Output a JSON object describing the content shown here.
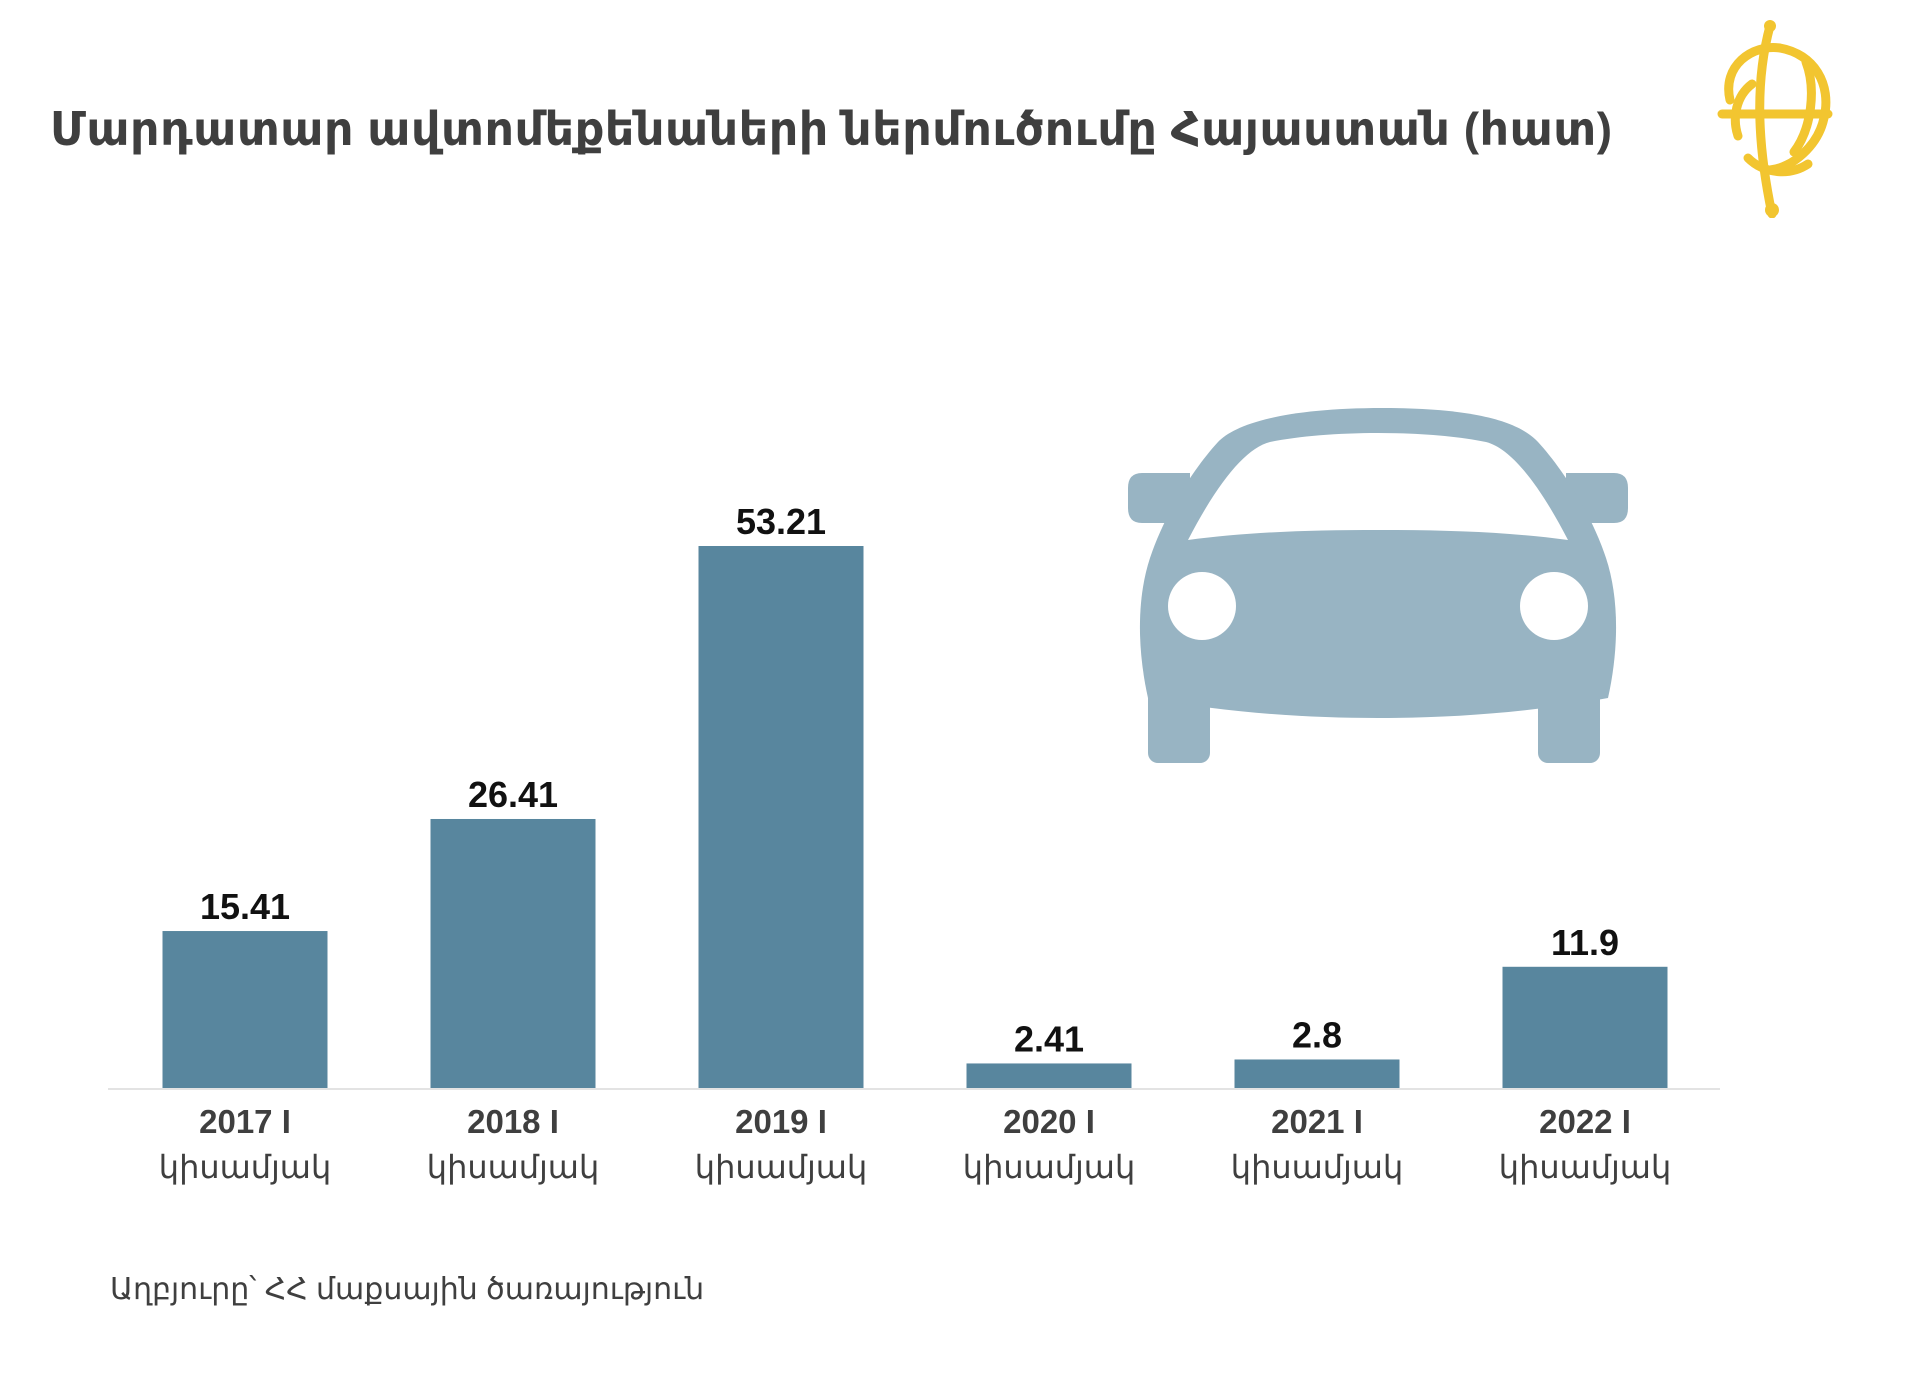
{
  "title": "Մարդատար ավտոմեքենաների ներմուծումը Հայաստան (հատ)",
  "source": "Աղբյուրը՝ ՀՀ մաքսային ծառայություն",
  "colors": {
    "bar": "#58869e",
    "car": "#98b4c3",
    "logo": "#f2c530",
    "text": "#3f3f3f",
    "label": "#111111",
    "axis": "#e3e3e3"
  },
  "icons": {
    "logo": "globe-logo-icon",
    "illustration": "car-icon"
  },
  "chart_data": {
    "type": "bar",
    "title": "Մարդատար ավտոմեքենաների ներմուծումը Հայաստան (հատ)",
    "categories": [
      [
        "2017 I",
        "կիսամյակ"
      ],
      [
        "2018 I",
        "կիսամյակ"
      ],
      [
        "2019 I",
        "կիսամյակ"
      ],
      [
        "2020 I",
        "կիսամյակ"
      ],
      [
        "2021 I",
        "կիսամյակ"
      ],
      [
        "2022 I",
        "կիսամյակ"
      ]
    ],
    "values": [
      15.41,
      26.41,
      53.21,
      2.41,
      2.8,
      11.9
    ],
    "data_labels": [
      "15.41",
      "26.41",
      "53.21",
      "2.41",
      "2.8",
      "11.9"
    ],
    "xlabel": "",
    "ylabel": "",
    "ylim": [
      0,
      53.21
    ],
    "grid": false,
    "legend": "none"
  }
}
